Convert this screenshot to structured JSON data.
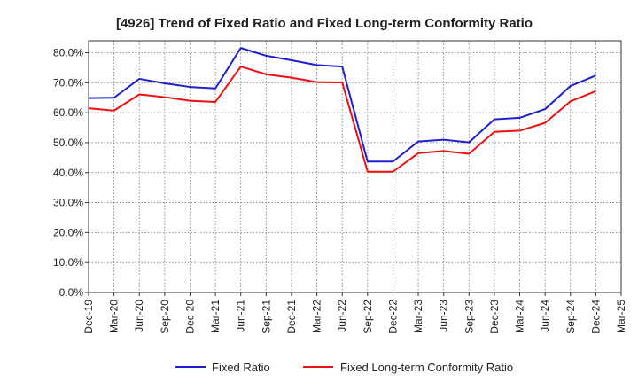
{
  "chart_data": {
    "type": "line",
    "title": "[4926]  Trend of Fixed Ratio and Fixed Long-term Conformity Ratio",
    "xlabel": "",
    "ylabel": "",
    "categories": [
      "Dec-19",
      "Mar-20",
      "Jun-20",
      "Sep-20",
      "Dec-20",
      "Mar-21",
      "Jun-21",
      "Sep-21",
      "Dec-21",
      "Mar-22",
      "Jun-22",
      "Sep-22",
      "Dec-22",
      "Mar-23",
      "Jun-23",
      "Sep-23",
      "Dec-23",
      "Mar-24",
      "Jun-24",
      "Sep-24",
      "Dec-24",
      "Mar-25"
    ],
    "y_ticks": [
      "0.0%",
      "10.0%",
      "20.0%",
      "30.0%",
      "40.0%",
      "50.0%",
      "60.0%",
      "70.0%",
      "80.0%"
    ],
    "ylim": [
      0,
      84
    ],
    "grid": true,
    "legend_position": "bottom",
    "series": [
      {
        "name": "Fixed Ratio",
        "color": "#1f1fcc",
        "values": [
          64.9,
          65.0,
          71.3,
          69.8,
          68.6,
          68.1,
          81.6,
          79.0,
          77.5,
          75.9,
          75.4,
          43.7,
          43.7,
          50.4,
          51.0,
          50.1,
          57.8,
          58.3,
          61.2,
          68.9,
          72.4,
          null
        ]
      },
      {
        "name": "Fixed Long-term Conformity Ratio",
        "color": "#ee1111",
        "values": [
          61.5,
          60.7,
          66.1,
          65.2,
          64.0,
          63.6,
          75.4,
          72.8,
          71.7,
          70.2,
          70.1,
          40.3,
          40.3,
          46.5,
          47.2,
          46.3,
          53.6,
          54.0,
          56.6,
          63.8,
          67.2,
          null
        ]
      }
    ]
  }
}
